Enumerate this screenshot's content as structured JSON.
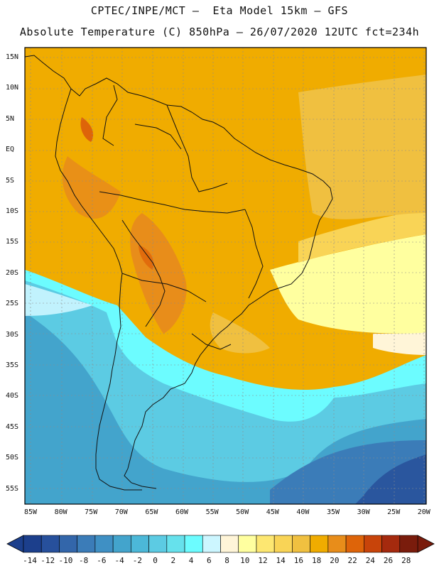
{
  "header": {
    "line1": "CPTEC/INPE/MCT –  Eta Model 15km – GFS",
    "line2": "Absolute Temperature (C) 850hPa – 26/07/2020 12UTC fct=234h"
  },
  "map": {
    "region": "South America",
    "lat_labels": [
      "15N",
      "10N",
      "5N",
      "EQ",
      "5S",
      "10S",
      "15S",
      "20S",
      "25S",
      "30S",
      "35S",
      "40S",
      "45S",
      "50S",
      "55S"
    ],
    "lon_labels": [
      "85W",
      "80W",
      "75W",
      "70W",
      "65W",
      "60W",
      "55W",
      "50W",
      "45W",
      "40W",
      "35W",
      "30W",
      "25W",
      "20W"
    ]
  },
  "colorbar": {
    "labels": [
      "-14",
      "-12",
      "-10",
      "-8",
      "-6",
      "-4",
      "-2",
      "0",
      "2",
      "4",
      "6",
      "8",
      "10",
      "12",
      "14",
      "16",
      "18",
      "20",
      "22",
      "24",
      "26",
      "28"
    ],
    "colors": [
      "#1c3f8c",
      "#27509c",
      "#3366aa",
      "#3b7cb8",
      "#3f90c4",
      "#43a4cc",
      "#4cb8d8",
      "#5ccbe3",
      "#66e1ec",
      "#6cfcff",
      "#ccf6ff",
      "#fff5d8",
      "#ffff9f",
      "#fde771",
      "#f9d456",
      "#f0c040",
      "#f0ac00",
      "#e88d1a",
      "#de6409",
      "#c8440a",
      "#a52a0e",
      "#7a1c0c"
    ]
  }
}
